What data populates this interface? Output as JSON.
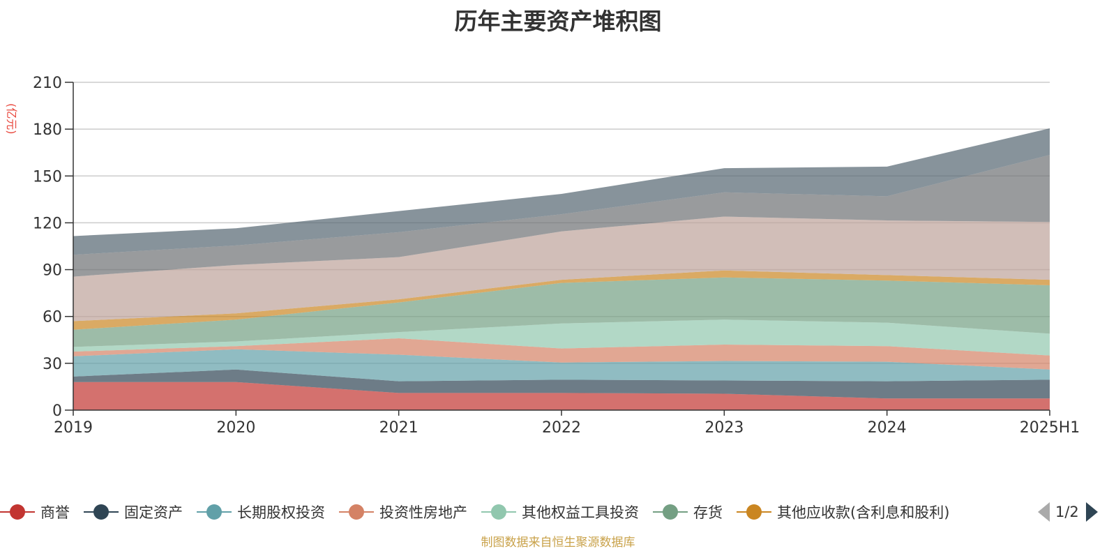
{
  "chart_data": {
    "type": "area",
    "stacked": true,
    "title": "历年主要资产堆积图",
    "unit": "(亿元)",
    "categories": [
      "2019",
      "2020",
      "2021",
      "2022",
      "2023",
      "2024",
      "2025H1"
    ],
    "ylim": [
      0,
      210
    ],
    "yticks": [
      0,
      30,
      60,
      90,
      120,
      150,
      180,
      210
    ],
    "grid": true,
    "legend_position": "bottom",
    "series": [
      {
        "name": "商誉",
        "color": "#c23531",
        "values": [
          18,
          18,
          11,
          11,
          10.5,
          7.5,
          7.5
        ]
      },
      {
        "name": "固定资产",
        "color": "#2f4554",
        "values": [
          3.5,
          8,
          7.5,
          8.5,
          8.5,
          11,
          12
        ]
      },
      {
        "name": "长期股权投资",
        "color": "#61a0a8",
        "values": [
          13,
          13,
          17,
          11,
          12.5,
          12.5,
          6.5
        ]
      },
      {
        "name": "投资性房地产",
        "color": "#d48265",
        "values": [
          3,
          2,
          10.5,
          9,
          10.5,
          10,
          9
        ]
      },
      {
        "name": "其他权益工具投资",
        "color": "#91c7ae",
        "values": [
          3,
          3,
          4,
          16,
          16,
          15,
          14
        ]
      },
      {
        "name": "存货",
        "color": "#749f83",
        "values": [
          11,
          14,
          19,
          26,
          27,
          27,
          31
        ]
      },
      {
        "name": "其他应收款(含利息和股利)",
        "color": "#ca8622",
        "values": [
          5.5,
          4,
          2,
          2,
          4.5,
          3.5,
          3.5
        ]
      },
      {
        "name": "",
        "color": "#bda29a",
        "values": [
          28.5,
          31,
          27,
          31,
          34.5,
          35,
          37
        ]
      },
      {
        "name": "",
        "color": "#6e7074",
        "values": [
          14,
          12.5,
          16,
          11,
          15.5,
          15.5,
          43
        ]
      },
      {
        "name": "",
        "color": "#546570",
        "values": [
          12,
          11,
          13.5,
          13,
          15.5,
          19,
          17
        ]
      }
    ],
    "legend_page": "1/2"
  },
  "footer": "制图数据来自恒生聚源数据库"
}
